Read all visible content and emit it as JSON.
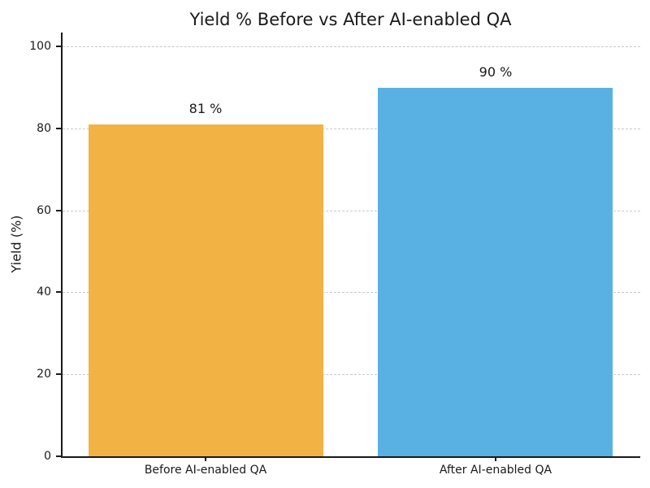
{
  "chart_data": {
    "type": "bar",
    "title": "Yield % Before vs After AI-enabled QA",
    "categories": [
      "Before AI-enabled QA",
      "After AI-enabled QA"
    ],
    "values": [
      81,
      90
    ],
    "value_labels": [
      "81 %",
      "90 %"
    ],
    "bar_colors": [
      "#f2b344",
      "#58b1e2"
    ],
    "xlabel": "",
    "ylabel": "Yield (%)",
    "ylim": [
      0,
      103.4
    ],
    "yticks": [
      0,
      20,
      40,
      60,
      80,
      100
    ],
    "grid": "horizontal-dashed",
    "grid_color": "#c9c9c9",
    "legend": "none",
    "spine_color": "#1a1a1a",
    "text_color": "#1a1a1a",
    "background_color": "#ffffff"
  }
}
